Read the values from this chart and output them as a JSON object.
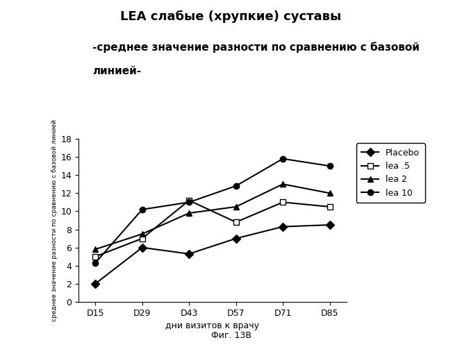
{
  "title_line1": "LEA слабые (хрупкие) суставы",
  "subtitle_line1": "-среднее значение разности по сравнению с базовой",
  "subtitle_line2": "линией-",
  "xlabel": "дни визитов к врачу",
  "ylabel": "среднее значение разности по сравнению с базовой линией",
  "caption": "Фиг. 13В",
  "x_labels": [
    "D15",
    "D29",
    "D43",
    "D57",
    "D71",
    "D85"
  ],
  "x_values": [
    15,
    29,
    43,
    57,
    71,
    85
  ],
  "ylim": [
    0,
    18
  ],
  "yticks": [
    0,
    2,
    4,
    6,
    8,
    10,
    12,
    14,
    16,
    18
  ],
  "xlim": [
    10,
    90
  ],
  "series": [
    {
      "label": "Placebo",
      "values": [
        2.0,
        6.0,
        5.3,
        7.0,
        8.3,
        8.5
      ],
      "marker": "D",
      "color": "#000000",
      "linestyle": "-",
      "markerfacecolor": "#000000"
    },
    {
      "label": "lea .5",
      "values": [
        5.0,
        7.0,
        11.2,
        8.8,
        11.0,
        10.5
      ],
      "marker": "s",
      "color": "#000000",
      "linestyle": "-",
      "markerfacecolor": "white"
    },
    {
      "label": "lea 2",
      "values": [
        5.8,
        7.5,
        9.8,
        10.5,
        13.0,
        12.0
      ],
      "marker": "^",
      "color": "#000000",
      "linestyle": "-",
      "markerfacecolor": "#000000"
    },
    {
      "label": "lea 10",
      "values": [
        4.3,
        10.2,
        11.0,
        12.8,
        15.8,
        15.0
      ],
      "marker": "o",
      "color": "#000000",
      "linestyle": "-",
      "markerfacecolor": "#000000"
    }
  ],
  "title_fontsize": 13,
  "subtitle_fontsize": 11,
  "axis_label_fontsize": 9,
  "tick_fontsize": 9,
  "legend_fontsize": 9,
  "caption_fontsize": 9
}
